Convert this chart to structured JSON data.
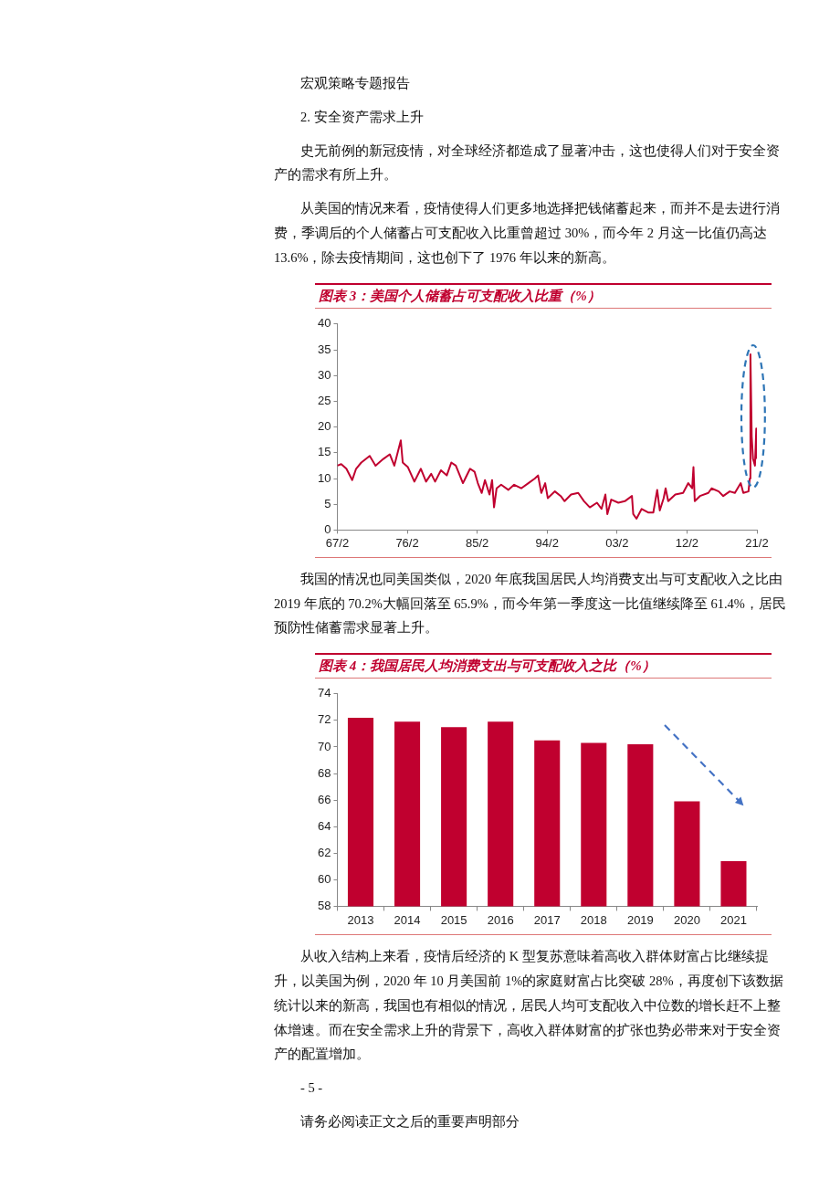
{
  "chart_data": [
    {
      "type": "line",
      "title": "图表 3：美国个人储蓄占可支配收入比重（%）",
      "annotations": [
        "宏观策略专题报告",
        "2. 安全资产需求上升",
        "史无前例的新冠疫情，对全球经济都造成了显著冲击，这也使得人们对于安全资产的需求有所上升。",
        "从美国的情况来看，疫情使得人们更多地选择把钱储蓄起来，而并不是去进行消费，季调后的个人储蓄占可支配收入比重曾超过 30%，而今年 2 月这一比值仍高达 13.6%，除去疫情期间，这也创下了 1976 年以来的新高。"
      ],
      "color": "#c0002f",
      "marker": "none",
      "line_style": "solid",
      "x": [
        "1967-02",
        "1967-08",
        "1968-04",
        "1969-01",
        "1969-07",
        "1970-03",
        "1971-04",
        "1972-01",
        "1973-01",
        "1973-11",
        "1974-06",
        "1975-04",
        "1975-07",
        "1976-03",
        "1977-01",
        "1977-11",
        "1978-07",
        "1979-03",
        "1979-09",
        "1980-06",
        "1981-03",
        "1981-10",
        "1982-05",
        "1983-04",
        "1984-03",
        "1984-10",
        "1985-03",
        "1985-09",
        "1986-02",
        "1986-09",
        "1987-01",
        "1987-04",
        "1987-08",
        "1988-03",
        "1989-02",
        "1989-11",
        "1990-10",
        "1991-09",
        "1992-07",
        "1992-12",
        "1993-05",
        "1993-11",
        "1994-03",
        "1995-02",
        "1995-11",
        "1996-05",
        "1997-03",
        "1998-02",
        "1998-11",
        "1999-08",
        "2000-07",
        "2001-02",
        "2001-08",
        "2001-11",
        "2002-05",
        "2003-04",
        "2004-02",
        "2005-01",
        "2005-03",
        "2005-08",
        "2006-04",
        "2007-02",
        "2007-10",
        "2008-04",
        "2008-08",
        "2009-02",
        "2009-05",
        "2009-09",
        "2010-08",
        "2011-08",
        "2012-04",
        "2012-10",
        "2012-12",
        "2013-02",
        "2013-10",
        "2014-11",
        "2015-04",
        "2016-03",
        "2016-10",
        "2017-08",
        "2018-04",
        "2019-01",
        "2019-05",
        "2020-01",
        "2020-03",
        "2020-04",
        "2020-06",
        "2020-08",
        "2020-11",
        "2021-01",
        "2021-02"
      ],
      "values": [
        12.5,
        12.8,
        11.9,
        9.7,
        11.9,
        13.1,
        14.4,
        12.5,
        13.8,
        14.7,
        12.5,
        17.4,
        13.1,
        12.2,
        9.4,
        11.9,
        9.4,
        10.9,
        9.4,
        11.6,
        10.6,
        13.1,
        12.5,
        9.1,
        11.9,
        11.3,
        9.1,
        7.2,
        9.7,
        6.9,
        9.7,
        4.4,
        8.1,
        8.8,
        7.8,
        8.8,
        8.1,
        9.1,
        10.0,
        10.6,
        7.2,
        9.1,
        6.2,
        7.5,
        6.6,
        5.6,
        6.9,
        7.2,
        5.6,
        4.4,
        5.3,
        4.1,
        6.9,
        3.1,
        5.9,
        5.3,
        5.6,
        6.6,
        3.1,
        2.2,
        4.1,
        3.4,
        3.4,
        7.8,
        3.8,
        6.2,
        8.1,
        5.6,
        6.9,
        7.2,
        9.1,
        8.1,
        12.2,
        5.6,
        6.6,
        7.2,
        8.1,
        7.5,
        6.6,
        7.5,
        7.2,
        9.1,
        7.2,
        7.5,
        10.0,
        34.1,
        18.1,
        13.8,
        12.5,
        19.7,
        13.8
      ],
      "xlim": [
        "1967-02",
        "2021-02"
      ],
      "xticks": [
        {
          "value": "1967-02",
          "label": "67/2"
        },
        {
          "value": "1976-02",
          "label": "76/2"
        },
        {
          "value": "1985-02",
          "label": "85/2"
        },
        {
          "value": "1994-02",
          "label": "94/2"
        },
        {
          "value": "2003-02",
          "label": "03/2"
        },
        {
          "value": "2012-02",
          "label": "12/2"
        },
        {
          "value": "2021-02",
          "label": "21/2"
        }
      ],
      "ylim": [
        0,
        40
      ],
      "yticks": [
        0,
        5,
        10,
        15,
        20,
        25,
        30,
        35,
        40
      ]
    },
    {
      "type": "bar",
      "title": "图表 4：我国居民人均消费支出与可支配收入之比（%）",
      "annotations": [
        "我国的情况也同美国类似，2020 年底我国居民人均消费支出与可支配收入之比由 2019 年底的 70.2%大幅回落至 65.9%，而今年第一季度这一比值继续降至 61.4%，居民预防性储蓄需求显著上升。"
      ],
      "categories": [
        "2013",
        "2014",
        "2015",
        "2016",
        "2017",
        "2018",
        "2019",
        "2020",
        "2021"
      ],
      "values": [
        72.2,
        71.9,
        71.5,
        71.9,
        70.5,
        70.3,
        70.2,
        65.9,
        61.4
      ],
      "color": "#c0002f",
      "ylim": [
        58,
        74
      ],
      "yticks": [
        58,
        60,
        62,
        64,
        66,
        68,
        70,
        72,
        74
      ]
    },
    {
      "type": "other",
      "annotations": [
        "从收入结构上来看，疫情后经济的 K 型复苏意味着高收入群体财富占比继续提升，以美国为例，2020 年 10 月美国前 1%的家庭财富占比突破 28%，再度创下该数据统计以来的新高，我国也有相似的情况，居民人均可支配收入中位数的增长赶不上整体增速。而在安全需求上升的背景下，高收入群体财富的扩张也势必带来对于安全资产的配置增加。",
        "- 5 -",
        "请务必阅读正文之后的重要声明部分"
      ]
    }
  ]
}
